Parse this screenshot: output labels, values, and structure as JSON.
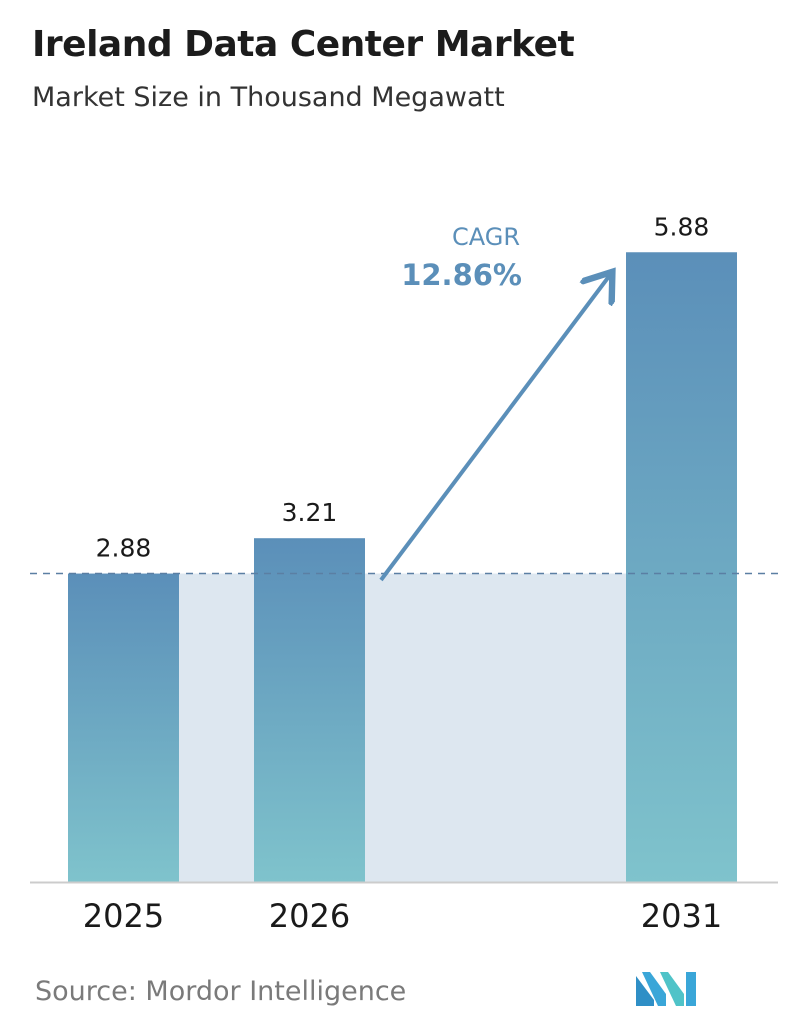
{
  "header": {
    "title": "Ireland Data Center Market",
    "subtitle": "Market Size in Thousand Megawatt"
  },
  "cagr": {
    "label": "CAGR",
    "value": "12.86%"
  },
  "footer": {
    "source": "Source: Mordor Intelligence",
    "logo_icon": "mordor-intelligence-logo-icon"
  },
  "colors": {
    "bar_top": "#5b8fb9",
    "bar_bottom": "#7fc3cc",
    "band": "#dde7f0",
    "dashed_line": "#5b7fa3",
    "cagr_text": "#5b8fb9",
    "arrow": "#5b8fb9",
    "baseline": "#cccccc"
  },
  "chart_data": {
    "type": "bar",
    "categories": [
      "2025",
      "2026",
      "2031"
    ],
    "values": [
      2.88,
      3.21,
      5.88
    ],
    "value_labels": [
      "2.88",
      "3.21",
      "5.88"
    ],
    "title": "Ireland Data Center Market",
    "subtitle": "Market Size in Thousand Megawatt",
    "xlabel": "",
    "ylabel": "",
    "ylim": [
      0,
      6.5
    ],
    "grid": false,
    "annotations": [
      "CAGR",
      "12.86%"
    ]
  }
}
